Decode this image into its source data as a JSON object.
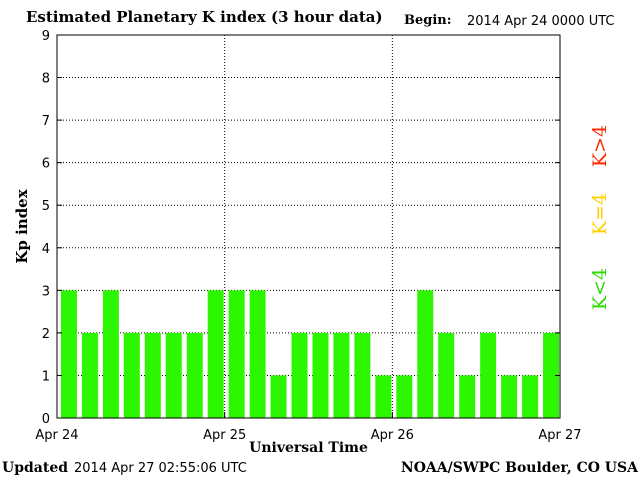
{
  "header": {
    "title": "Estimated Planetary K index (3 hour data)",
    "begin_label": "Begin:",
    "begin_value": "2014 Apr 24 0000 UTC"
  },
  "footer": {
    "updated_label": "Updated",
    "updated_value": "2014 Apr 27 02:55:06 UTC",
    "credit": "NOAA/SWPC Boulder, CO USA"
  },
  "legend": [
    {
      "label": "K>4",
      "color": "#ff2a00"
    },
    {
      "label": "K=4",
      "color": "#ffd000"
    },
    {
      "label": "K<4",
      "color": "#2adb00"
    }
  ],
  "chart_data": {
    "type": "bar",
    "title": "Estimated Planetary K index (3 hour data)",
    "xlabel": "Universal Time",
    "ylabel": "Kp index",
    "ylim": [
      0,
      9
    ],
    "yticks": [
      "0",
      "1",
      "2",
      "3",
      "4",
      "5",
      "6",
      "7",
      "8",
      "9"
    ],
    "xticks": [
      "Apr 24",
      "Apr 25",
      "Apr 26",
      "Apr 27"
    ],
    "grid": true,
    "bar_color": "#2cf600",
    "values": [
      3,
      2,
      3,
      2,
      2,
      2,
      2,
      3,
      3,
      3,
      1,
      2,
      2,
      2,
      2,
      1,
      1,
      3,
      2,
      1,
      2,
      1,
      1,
      2
    ]
  }
}
